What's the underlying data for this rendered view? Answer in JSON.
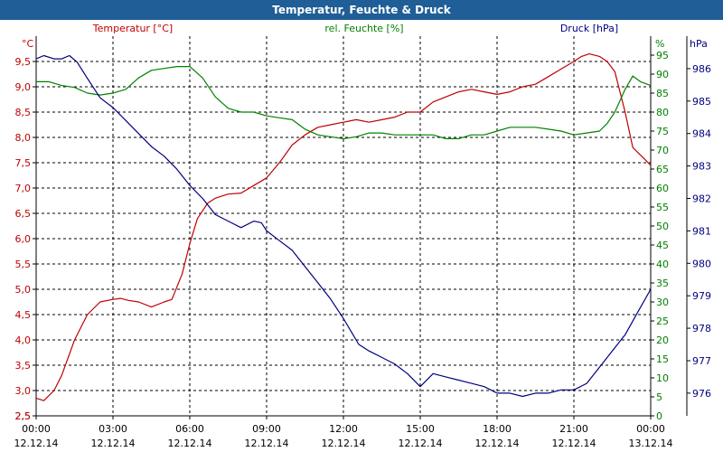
{
  "window": {
    "title": "Temperatur, Feuchte & Druck"
  },
  "chart_data": {
    "type": "line",
    "title": "Temperatur, Feuchte & Druck",
    "x_ticks": [
      {
        "time": "00:00",
        "date": "12.12.14"
      },
      {
        "time": "03:00",
        "date": "12.12.14"
      },
      {
        "time": "06:00",
        "date": "12.12.14"
      },
      {
        "time": "09:00",
        "date": "12.12.14"
      },
      {
        "time": "12:00",
        "date": "12.12.14"
      },
      {
        "time": "15:00",
        "date": "12.12.14"
      },
      {
        "time": "18:00",
        "date": "12.12.14"
      },
      {
        "time": "21:00",
        "date": "12.12.14"
      },
      {
        "time": "00:00",
        "date": "13.12.14"
      }
    ],
    "x_unit_note": "x values are hours after 12.12.14 00:00",
    "xlim": [
      0,
      24
    ],
    "grid": true,
    "axes": {
      "temperature": {
        "unit": "°C",
        "lim": [
          2.5,
          10.0
        ],
        "ticks": [
          "2,5",
          "3,0",
          "3,5",
          "4,0",
          "4,5",
          "5,0",
          "5,5",
          "6,0",
          "6,5",
          "7,0",
          "7,5",
          "8,0",
          "8,5",
          "9,0",
          "9,5"
        ],
        "color": "#c00000"
      },
      "humidity": {
        "unit": "%",
        "lim": [
          0,
          100
        ],
        "ticks": [
          "0",
          "5",
          "10",
          "15",
          "20",
          "25",
          "30",
          "35",
          "40",
          "45",
          "50",
          "55",
          "60",
          "65",
          "70",
          "75",
          "80",
          "85",
          "90",
          "95"
        ],
        "color": "#008000"
      },
      "pressure": {
        "unit": "hPa",
        "lim": [
          975.3,
          987.0
        ],
        "ticks": [
          "976",
          "977",
          "978",
          "979",
          "980",
          "981",
          "982",
          "983",
          "984",
          "985",
          "986"
        ],
        "color": "#000080"
      }
    },
    "series": [
      {
        "name": "Temperatur [°C]",
        "axis": "temperature",
        "color": "#c00000",
        "x": [
          0,
          0.3,
          0.7,
          1.0,
          1.5,
          2.0,
          2.5,
          3.0,
          3.3,
          3.6,
          4.0,
          4.5,
          5.0,
          5.3,
          5.7,
          6.0,
          6.3,
          6.7,
          7.0,
          7.5,
          8.0,
          8.5,
          9.0,
          9.5,
          10.0,
          10.5,
          11.0,
          11.5,
          12.0,
          12.5,
          13.0,
          13.5,
          14.0,
          14.5,
          15.0,
          15.5,
          16.0,
          16.5,
          17.0,
          17.5,
          18.0,
          18.5,
          19.0,
          19.5,
          20.0,
          20.5,
          21.0,
          21.3,
          21.6,
          22.0,
          22.3,
          22.6,
          23.0,
          23.3,
          23.6,
          24.0
        ],
        "y": [
          2.85,
          2.8,
          3.0,
          3.3,
          4.0,
          4.5,
          4.75,
          4.8,
          4.82,
          4.78,
          4.75,
          4.65,
          4.75,
          4.8,
          5.3,
          5.9,
          6.4,
          6.7,
          6.8,
          6.88,
          6.9,
          7.05,
          7.2,
          7.5,
          7.85,
          8.05,
          8.2,
          8.25,
          8.3,
          8.35,
          8.3,
          8.35,
          8.4,
          8.5,
          8.5,
          8.7,
          8.8,
          8.9,
          8.95,
          8.9,
          8.85,
          8.9,
          9.0,
          9.05,
          9.2,
          9.35,
          9.5,
          9.6,
          9.65,
          9.6,
          9.5,
          9.3,
          8.5,
          7.8,
          7.65,
          7.45
        ]
      },
      {
        "name": "rel. Feuchte [%]",
        "axis": "humidity",
        "color": "#008000",
        "x": [
          0,
          0.5,
          1.0,
          1.5,
          2.0,
          2.5,
          3.0,
          3.5,
          4.0,
          4.5,
          5.0,
          5.5,
          6.0,
          6.5,
          7.0,
          7.5,
          8.0,
          8.5,
          9.0,
          9.5,
          10.0,
          10.5,
          11.0,
          11.5,
          12.0,
          12.5,
          13.0,
          13.5,
          14.0,
          14.5,
          15.0,
          15.5,
          16.0,
          16.5,
          17.0,
          17.5,
          18.0,
          18.5,
          19.0,
          19.5,
          20.0,
          20.5,
          21.0,
          21.5,
          22.0,
          22.3,
          22.6,
          23.0,
          23.3,
          23.6,
          24.0
        ],
        "y": [
          88,
          88,
          87,
          86.5,
          85,
          84.5,
          85,
          86,
          89,
          91,
          91.5,
          92,
          92,
          89,
          84,
          81,
          80,
          80,
          79,
          78.5,
          78,
          75.5,
          74,
          73.5,
          73,
          73.5,
          74.5,
          74.5,
          74,
          74,
          74,
          74,
          73,
          73,
          74,
          74,
          75,
          76,
          76,
          76,
          75.5,
          75,
          74,
          74.5,
          75,
          77,
          80,
          86,
          89.5,
          88,
          87
        ]
      },
      {
        "name": "Druck [hPa]",
        "axis": "pressure",
        "color": "#000080",
        "x": [
          0,
          0.3,
          0.7,
          1.0,
          1.3,
          1.6,
          2.0,
          2.5,
          3.0,
          3.5,
          4.0,
          4.5,
          5.0,
          5.5,
          6.0,
          6.5,
          7.0,
          7.5,
          8.0,
          8.5,
          8.8,
          9.0,
          9.5,
          10.0,
          10.5,
          11.0,
          11.5,
          12.0,
          12.3,
          12.6,
          13.0,
          13.5,
          14.0,
          14.5,
          15.0,
          15.5,
          16.0,
          16.5,
          17.0,
          17.5,
          18.0,
          18.5,
          19.0,
          19.5,
          20.0,
          20.5,
          21.0,
          21.5,
          22.0,
          22.5,
          23.0,
          23.5,
          24.0
        ],
        "y": [
          986.3,
          986.4,
          986.3,
          986.3,
          986.4,
          986.2,
          985.7,
          985.1,
          984.8,
          984.4,
          984.0,
          983.6,
          983.3,
          982.9,
          982.4,
          982.0,
          981.5,
          981.3,
          981.1,
          981.3,
          981.25,
          981.0,
          980.7,
          980.4,
          979.9,
          979.4,
          978.9,
          978.3,
          977.9,
          977.5,
          977.3,
          977.1,
          976.9,
          976.6,
          976.2,
          976.6,
          976.5,
          976.4,
          976.3,
          976.2,
          976.0,
          976.0,
          975.9,
          976.0,
          976.0,
          976.1,
          976.1,
          976.3,
          976.8,
          977.3,
          977.8,
          978.5,
          979.2
        ]
      }
    ]
  }
}
